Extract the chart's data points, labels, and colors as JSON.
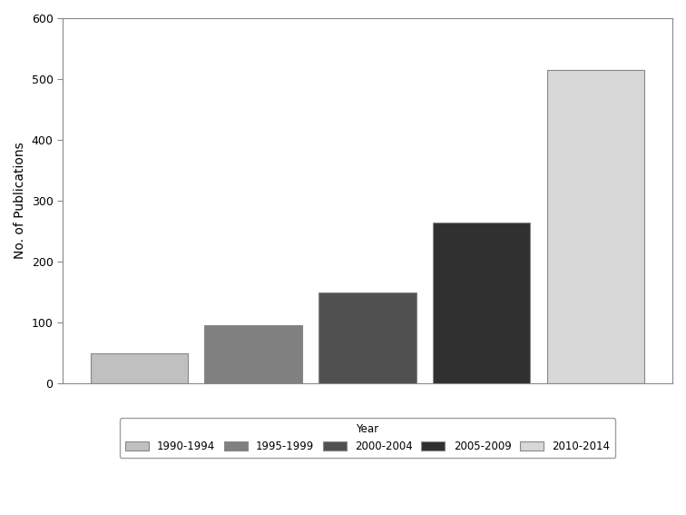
{
  "categories": [
    "1990-1994",
    "1995-1999",
    "2000-2004",
    "2005-2009",
    "2010-2014"
  ],
  "values": [
    50,
    95,
    150,
    265,
    515
  ],
  "bar_colors": [
    "#c0c0c0",
    "#808080",
    "#505050",
    "#303030",
    "#d8d8d8"
  ],
  "ylabel": "No. of Publications",
  "ylim": [
    0,
    600
  ],
  "yticks": [
    0,
    100,
    200,
    300,
    400,
    500,
    600
  ],
  "legend_label": "Year",
  "background_color": "#ffffff",
  "edge_color": "#aaaaaa",
  "bar_edge_color": "#888888"
}
